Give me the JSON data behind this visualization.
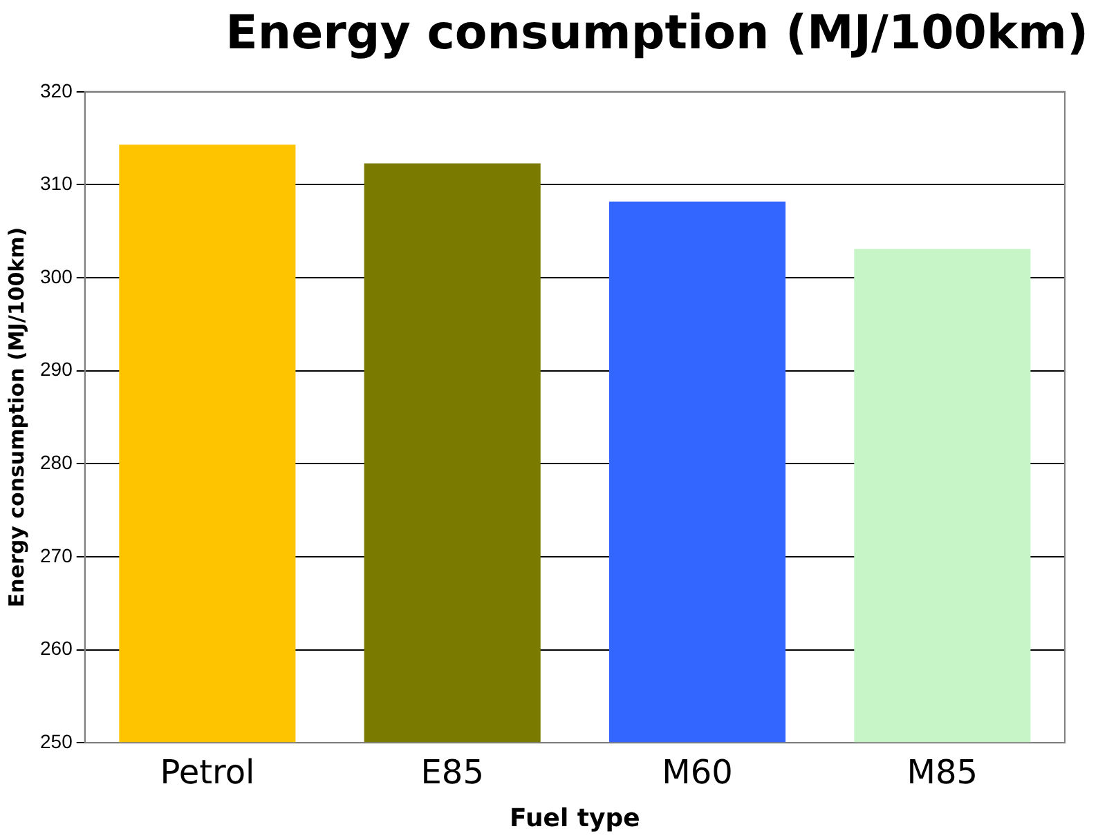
{
  "chart_data": {
    "type": "bar",
    "title": "Energy consumption (MJ/100km)",
    "xlabel": "Fuel type",
    "ylabel": "Energy consumption (MJ/100km)",
    "categories": [
      "Petrol",
      "E85",
      "M60",
      "M85"
    ],
    "values": [
      314.3,
      312.3,
      308.2,
      303.1
    ],
    "colors": [
      "#ffc400",
      "#7a7a00",
      "#3366ff",
      "#c8f5c8"
    ],
    "ylim": [
      250,
      320
    ],
    "yticks": [
      250,
      260,
      270,
      280,
      290,
      300,
      310,
      320
    ],
    "grid": "y",
    "legend": false
  }
}
